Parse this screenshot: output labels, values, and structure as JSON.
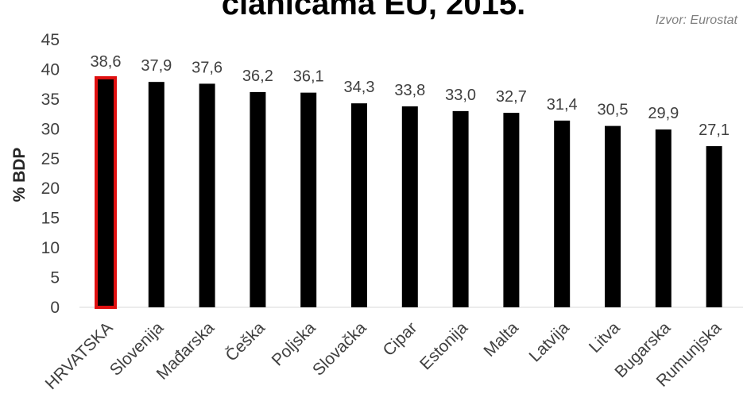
{
  "chart_data": {
    "type": "bar",
    "title": "članicama EU, 2015.",
    "source": "Izvor: Eurostat",
    "xlabel": "",
    "ylabel": "% BDP",
    "ylim": [
      0,
      45
    ],
    "yticks": [
      0,
      5,
      10,
      15,
      20,
      25,
      30,
      35,
      40,
      45
    ],
    "grid": false,
    "categories": [
      "HRVATSKA",
      "Slovenija",
      "Mađarska",
      "Češka",
      "Poljska",
      "Slovačka",
      "Cipar",
      "Estonija",
      "Malta",
      "Latvija",
      "Litva",
      "Bugarska",
      "Rumunjska"
    ],
    "values": [
      38.6,
      37.9,
      37.6,
      36.2,
      36.1,
      34.3,
      33.8,
      33.0,
      32.7,
      31.4,
      30.5,
      29.9,
      27.1
    ],
    "data_labels": [
      "38,6",
      "37,9",
      "37,6",
      "36,2",
      "36,1",
      "34,3",
      "33,8",
      "33,0",
      "32,7",
      "31,4",
      "30,5",
      "29,9",
      "27,1"
    ],
    "bar_color": "#000000",
    "highlight": {
      "category": "HRVATSKA",
      "outline_color": "#e01010"
    }
  }
}
